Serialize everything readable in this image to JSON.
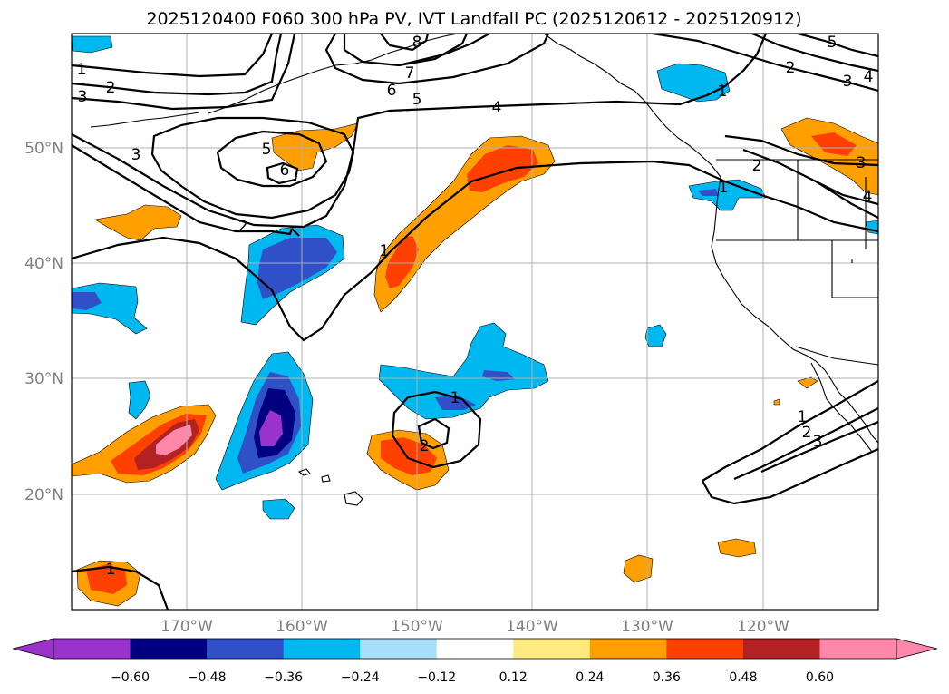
{
  "title": "2025120400 F060 300 hPa PV, IVT Landfall PC (2025120612 - 2025120912)",
  "latitude_labels": [
    "50°N",
    "40°N",
    "30°N",
    "20°N"
  ],
  "longitude_labels": [
    "170°W",
    "160°W",
    "150°W",
    "140°W",
    "130°W",
    "120°W"
  ],
  "contour_labels": [
    "1",
    "2",
    "3",
    "4",
    "5",
    "6",
    "7",
    "8",
    "1",
    "2",
    "3",
    "5",
    "6",
    "2",
    "1",
    "2",
    "1",
    "1",
    "1",
    "2",
    "3",
    "1",
    "2",
    "3",
    "4",
    "5",
    "7",
    "3",
    "4"
  ],
  "colorbar": {
    "tick_labels": [
      "−0.60",
      "−0.48",
      "−0.36",
      "−0.24",
      "−0.12",
      "0.12",
      "0.24",
      "0.36",
      "0.48",
      "0.60"
    ],
    "colors": [
      "#9933cc",
      "#000080",
      "#3050c8",
      "#00b8f0",
      "#a8e0fa",
      "#ffffff",
      "#ffea80",
      "#ffa000",
      "#ff4000",
      "#b22222",
      "#ff88aa",
      "#ff88aa"
    ]
  },
  "shading_colors": {
    "neg1": "#00b8f0",
    "neg2": "#3050c8",
    "neg3": "#000080",
    "neg4": "#9933cc",
    "pos1": "#ffa000",
    "pos2": "#ff4000",
    "pos3": "#b22222",
    "pos4": "#ff88aa"
  }
}
